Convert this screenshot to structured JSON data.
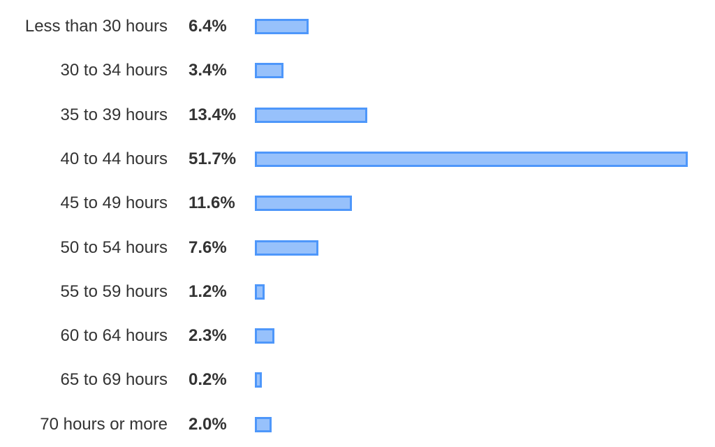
{
  "chart_data": {
    "type": "bar",
    "orientation": "horizontal",
    "categories": [
      "Less than 30 hours",
      "30 to 34 hours",
      "35 to 39 hours",
      "40 to 44 hours",
      "45 to 49 hours",
      "50 to 54 hours",
      "55 to 59 hours",
      "60 to 64 hours",
      "65 to 69 hours",
      "70 hours or more"
    ],
    "values": [
      6.4,
      3.4,
      13.4,
      51.7,
      11.6,
      7.6,
      1.2,
      2.3,
      0.2,
      2.0
    ],
    "value_labels": [
      "6.4%",
      "3.4%",
      "13.4%",
      "51.7%",
      "11.6%",
      "7.6%",
      "1.2%",
      "2.3%",
      "0.2%",
      "2.0%"
    ],
    "unit": "%",
    "xlim": [
      0,
      51.7
    ],
    "grid": false,
    "colors": {
      "bar_fill": "#97c1fb",
      "bar_border": "#4e97fa",
      "text": "#333333"
    }
  }
}
